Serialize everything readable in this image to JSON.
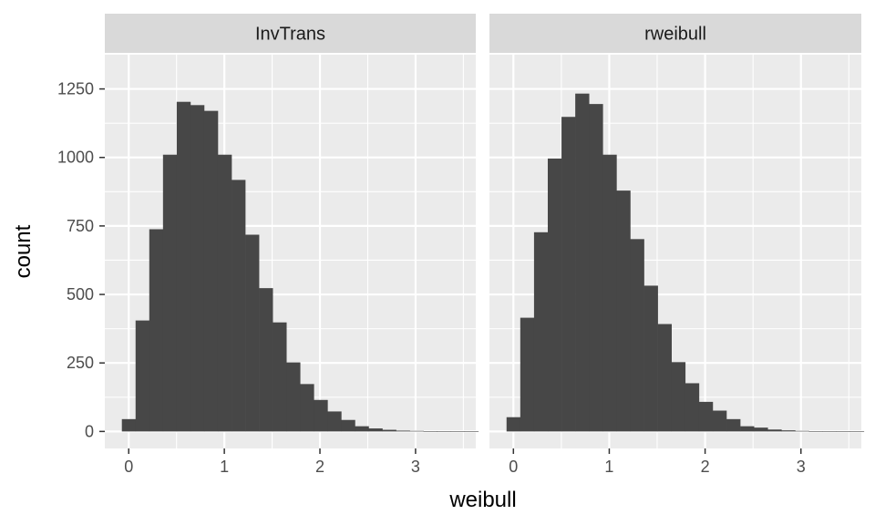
{
  "chart_data": {
    "type": "bar",
    "xlabel": "weibull",
    "ylabel": "count",
    "xlim": [
      -0.25,
      3.63
    ],
    "ylim": [
      -62,
      1375
    ],
    "x_ticks": [
      0,
      1,
      2,
      3
    ],
    "y_ticks": [
      0,
      250,
      500,
      750,
      1000,
      1250
    ],
    "bin_width": 0.1434,
    "bin_start": -0.0717,
    "panel_background": "#ebebeb",
    "strip_background": "#d9d9d9",
    "bar_color": "#474747",
    "grid_color": "#ffffff",
    "panels": [
      {
        "name": "InvTrans",
        "counts": [
          45,
          405,
          738,
          1010,
          1203,
          1191,
          1170,
          1010,
          918,
          718,
          523,
          398,
          252,
          173,
          115,
          73,
          42,
          19,
          11,
          6,
          3,
          2,
          1,
          0,
          0,
          0
        ]
      },
      {
        "name": "rweibull",
        "counts": [
          52,
          415,
          727,
          996,
          1148,
          1233,
          1195,
          1010,
          879,
          702,
          532,
          392,
          253,
          176,
          108,
          76,
          45,
          19,
          14,
          7,
          4,
          2,
          1,
          1,
          1,
          1
        ]
      }
    ]
  }
}
